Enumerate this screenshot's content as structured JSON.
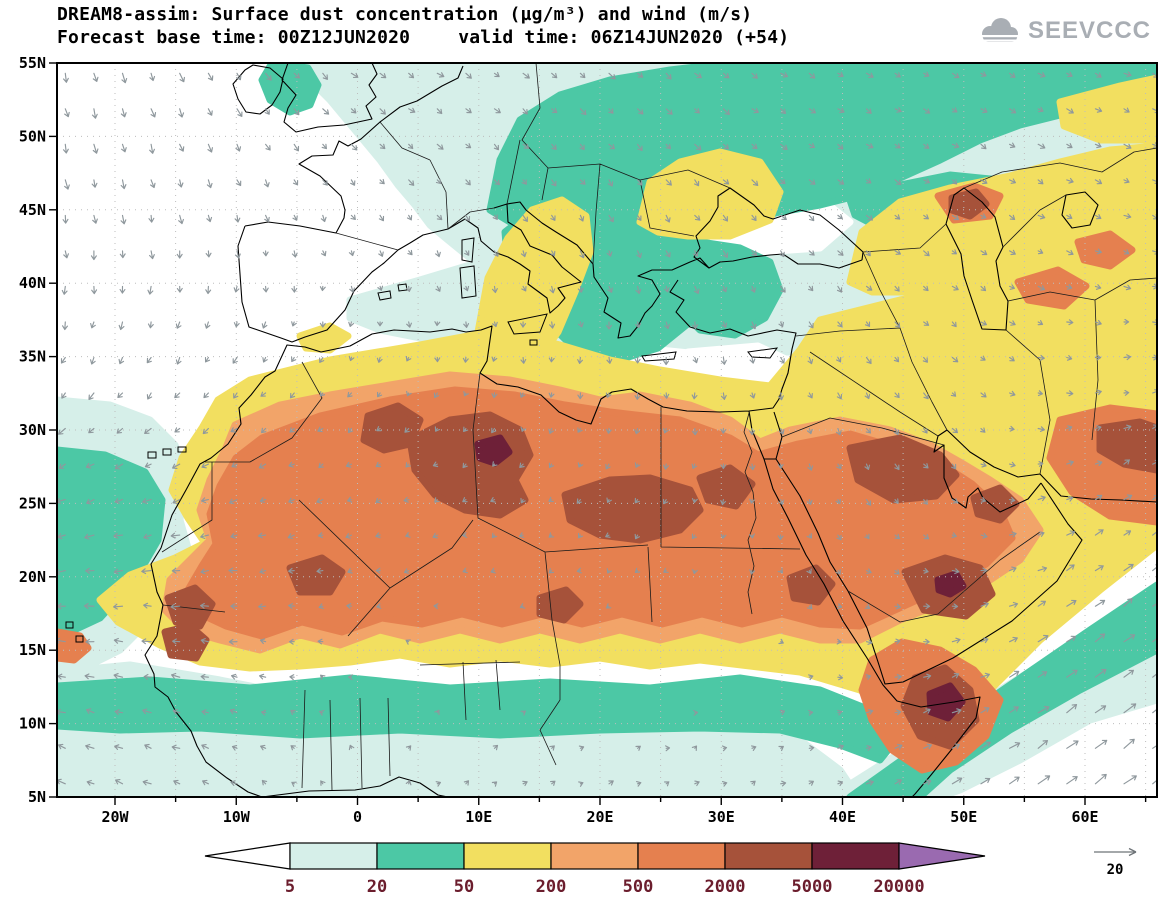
{
  "header": {
    "title": "DREAM8-assim: Surface dust concentration (µg/m³) and wind (m/s)",
    "subtitle_left": "Forecast base time: 00Z12JUN2020",
    "subtitle_right": "valid time: 06Z14JUN2020 (+54)",
    "logo_text": "SEEVCCC"
  },
  "map": {
    "lat_ticks": [
      "55N",
      "50N",
      "45N",
      "40N",
      "35N",
      "30N",
      "25N",
      "20N",
      "15N",
      "10N",
      "5N"
    ],
    "lon_ticks": [
      "20W",
      "10W",
      "0",
      "10E",
      "20E",
      "30E",
      "40E",
      "50E",
      "60E"
    ]
  },
  "colorbar": {
    "labels": [
      "5",
      "20",
      "50",
      "200",
      "500",
      "2000",
      "5000",
      "20000"
    ],
    "colors": [
      "#ffffff",
      "#d6efe9",
      "#4cc8a5",
      "#f2df60",
      "#f2a469",
      "#e5804f",
      "#a6523a",
      "#6e2038",
      "#9a6ab0"
    ],
    "label_color": "#6b1d2d"
  },
  "wind": {
    "reference_label": "20",
    "arrow_color": "#8f989d"
  }
}
